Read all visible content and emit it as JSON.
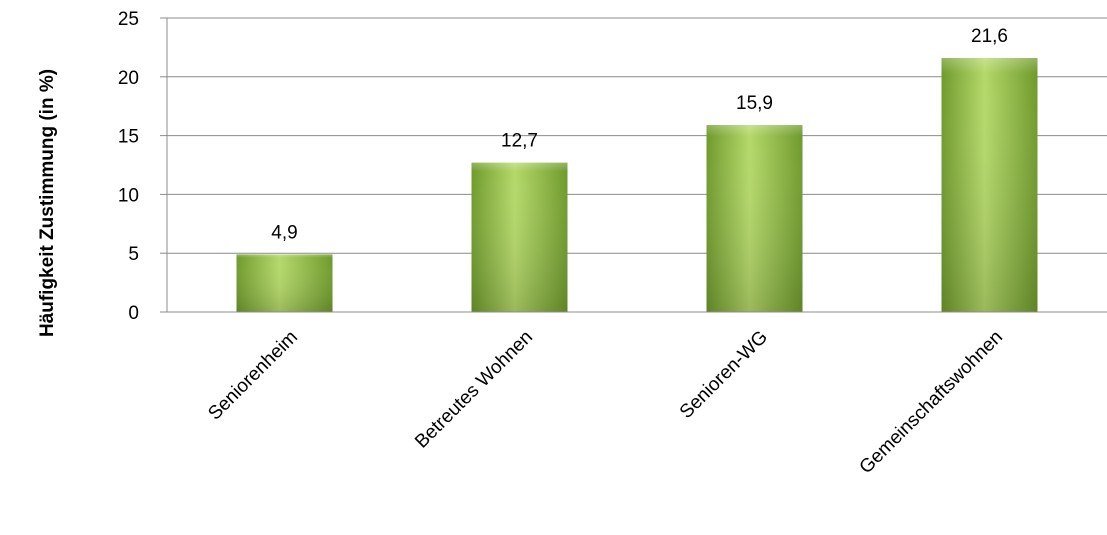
{
  "chart_data": {
    "type": "bar",
    "title": "",
    "xlabel": "",
    "ylabel": "Häufigkeit  Zustimmung (in %)",
    "categories": [
      "Seniorenheim",
      "Betreutes Wohnen",
      "Senioren-WG",
      "Gemeinschaftswohnen"
    ],
    "values": [
      4.9,
      12.7,
      15.9,
      21.6
    ],
    "data_labels": [
      "4,9",
      "12,7",
      "15,9",
      "21,6"
    ],
    "ylim": [
      0,
      25
    ],
    "yticks": [
      0,
      5,
      10,
      15,
      20,
      25
    ],
    "ytick_labels": [
      "0",
      "5",
      "10",
      "15",
      "20",
      "25"
    ],
    "grid": true,
    "legend": "none",
    "colors": {
      "bar_light": "#b5d96a",
      "bar_mid": "#9cc44a",
      "bar_dark": "#6f9a2c",
      "grid": "#8c8c8c",
      "axis": "#8c8c8c"
    }
  }
}
